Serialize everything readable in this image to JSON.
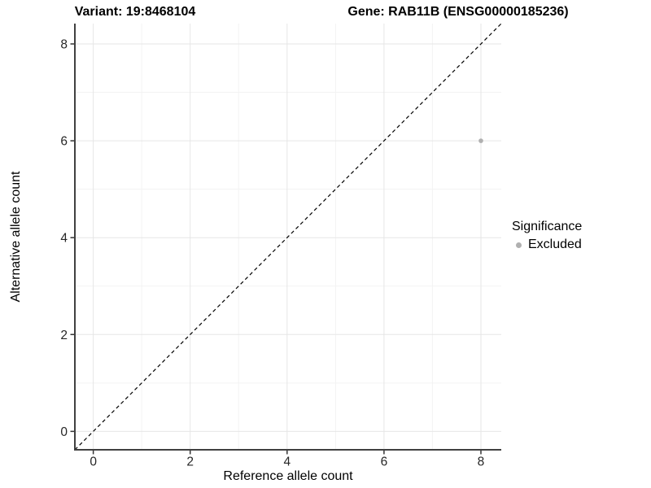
{
  "chart_data": {
    "type": "scatter",
    "titles": {
      "left": "Variant: 19:8468104",
      "right": "Gene: RAB11B (ENSG00000185236)"
    },
    "xlabel": "Reference allele count",
    "ylabel": "Alternative allele count",
    "xlim": [
      -0.38,
      8.42
    ],
    "ylim": [
      -0.38,
      8.42
    ],
    "x_ticks": [
      0,
      2,
      4,
      6,
      8
    ],
    "y_ticks": [
      0,
      2,
      4,
      6,
      8
    ],
    "x_minor_ticks": [
      1,
      3,
      5,
      7
    ],
    "y_minor_ticks": [
      1,
      3,
      5,
      7
    ],
    "grid": "on",
    "identity_line": {
      "slope": 1,
      "intercept": 0,
      "style": "dashed",
      "color": "#000000"
    },
    "series": [
      {
        "name": "Excluded",
        "color": "#b0b0b0",
        "points": [
          {
            "x": 8,
            "y": 6
          }
        ]
      }
    ],
    "legend": {
      "title": "Significance",
      "position": "right",
      "items": [
        {
          "label": "Excluded",
          "color": "#b0b0b0"
        }
      ]
    },
    "colors": {
      "grid_major": "#e6e6e6",
      "grid_minor": "#f3f3f3",
      "axis_line": "#404040",
      "tick_mark": "#333333",
      "tick_label": "#262626",
      "point": "#b0b0b0"
    }
  }
}
